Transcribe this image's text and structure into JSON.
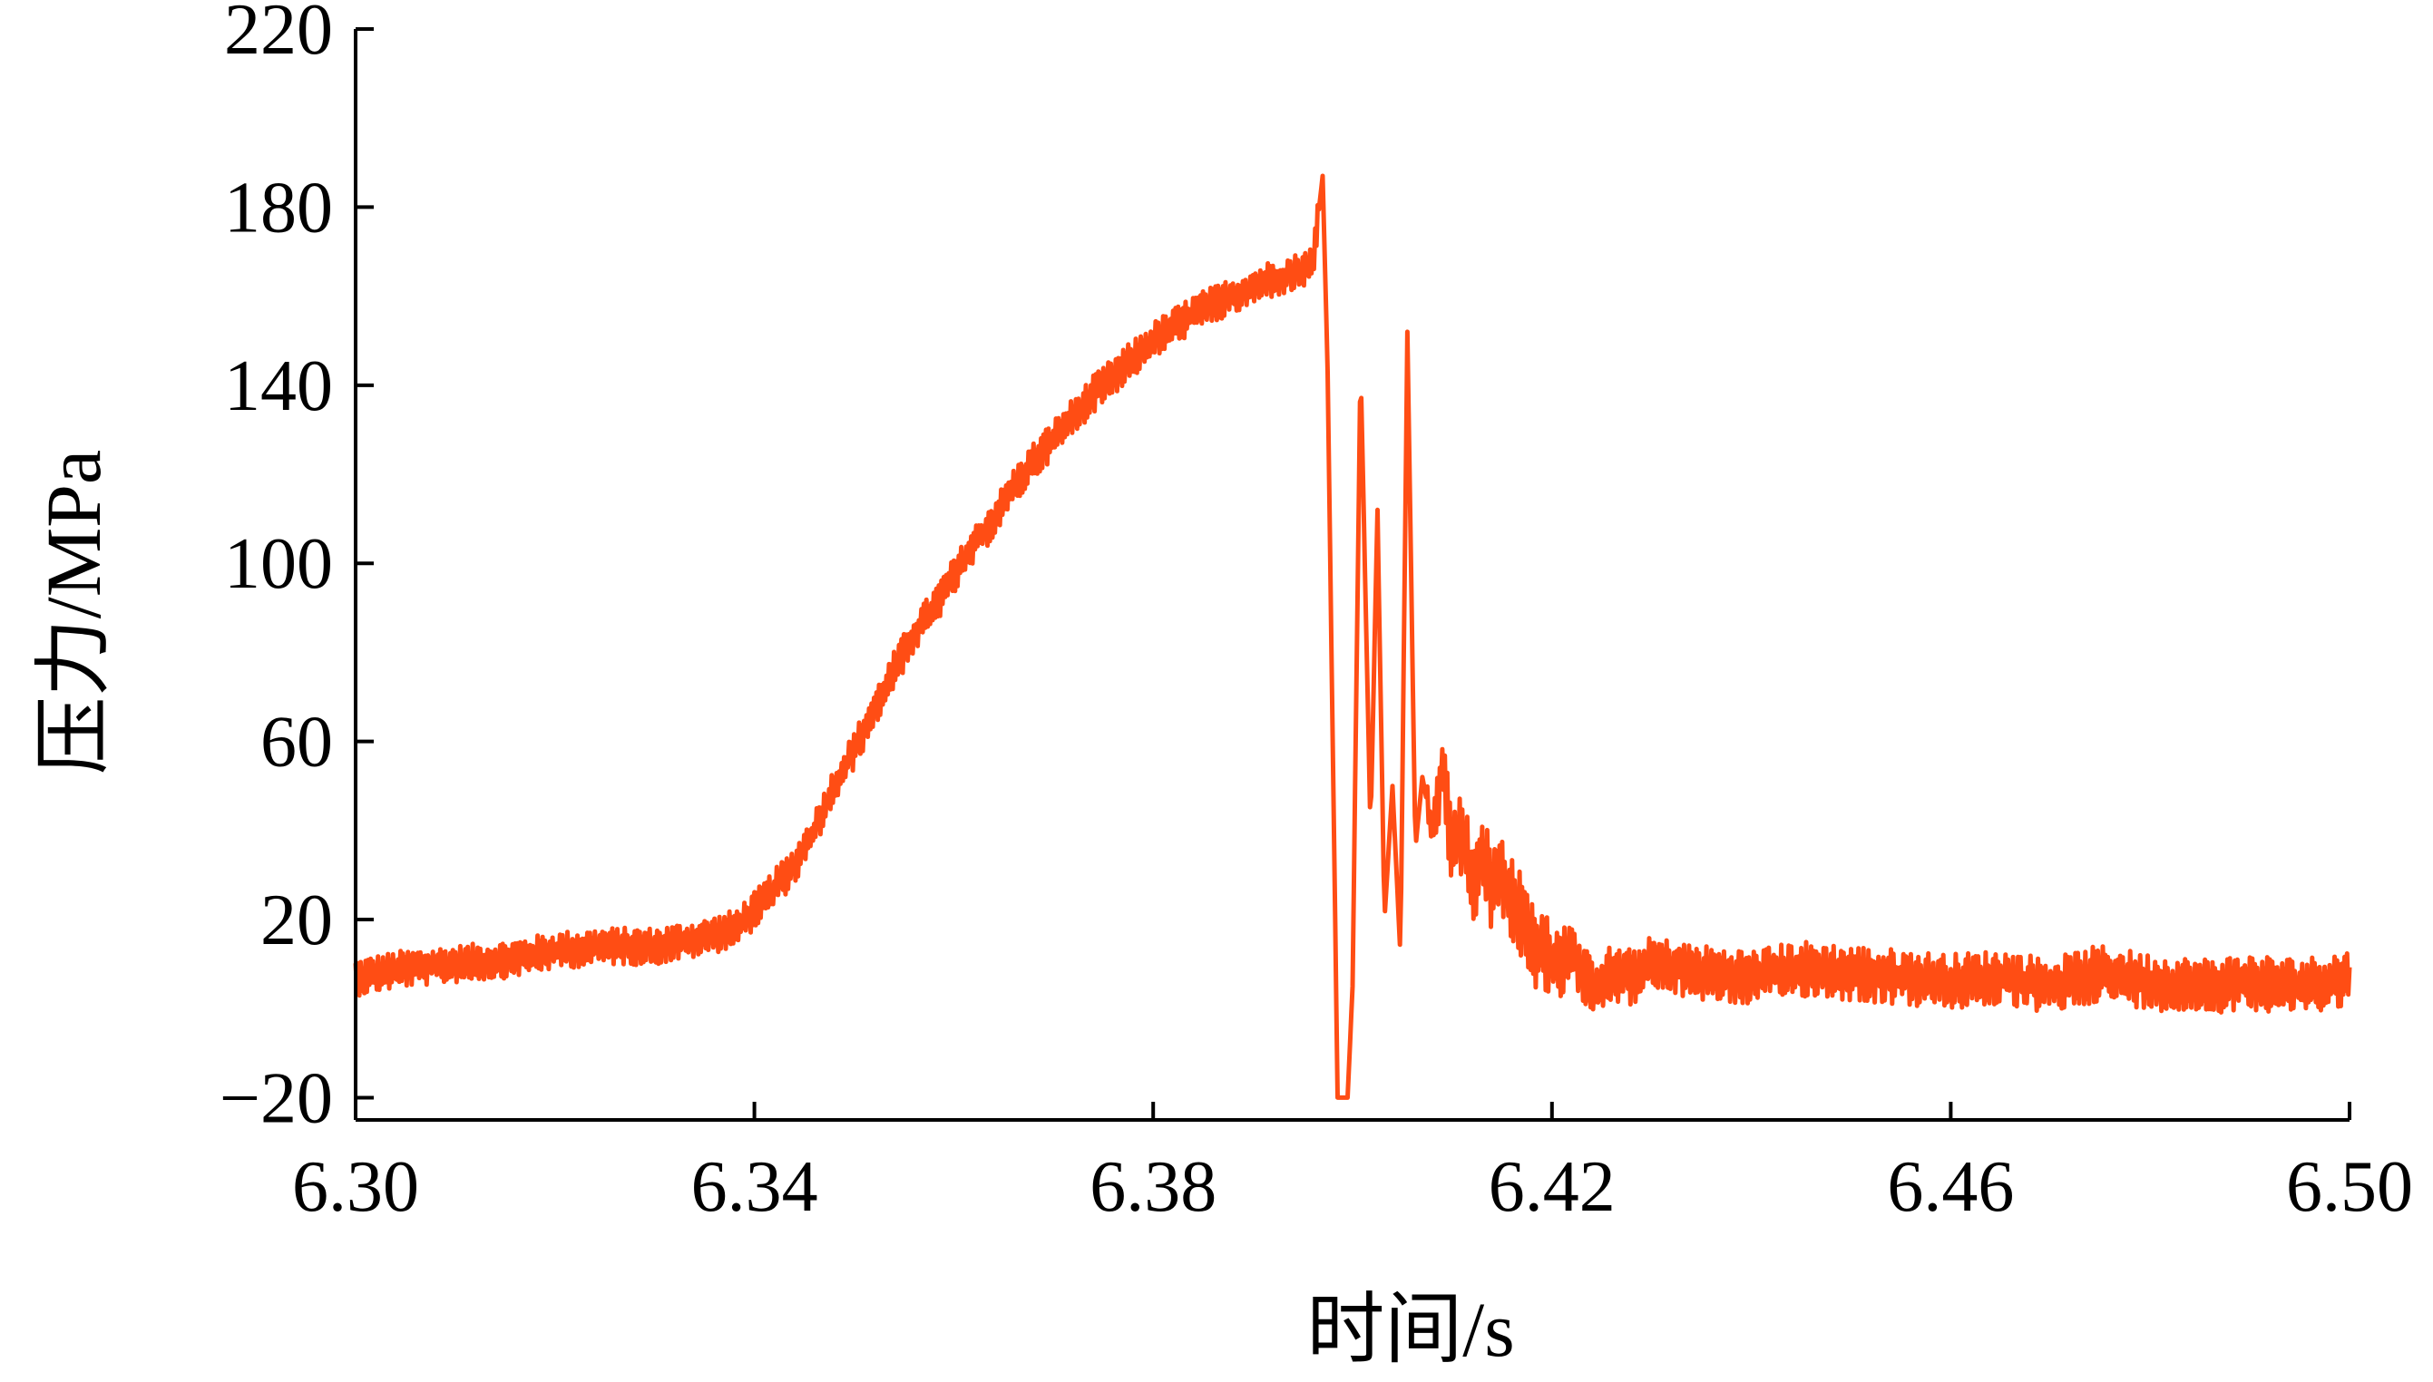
{
  "chart_data": {
    "type": "line",
    "xlabel": "时间/s",
    "ylabel": "压力/MPa",
    "xlim": [
      6.3,
      6.5
    ],
    "ylim": [
      -25,
      220
    ],
    "x_ticks": [
      6.3,
      6.34,
      6.38,
      6.42,
      6.46,
      6.5
    ],
    "x_tick_labels": [
      "6.30",
      "6.34",
      "6.38",
      "6.42",
      "6.46",
      "6.50"
    ],
    "y_ticks": [
      -20,
      20,
      60,
      100,
      140,
      180,
      220
    ],
    "y_tick_labels": [
      "−20",
      "20",
      "60",
      "100",
      "140",
      "180",
      "220"
    ],
    "grid": false,
    "line_color": "#ff4d14",
    "series": [
      {
        "x": [
          6.3,
          6.305,
          6.31,
          6.315,
          6.32,
          6.325,
          6.33,
          6.335,
          6.338,
          6.34,
          6.342,
          6.344,
          6.346,
          6.348,
          6.35,
          6.352,
          6.354,
          6.356,
          6.358,
          6.36,
          6.362,
          6.364,
          6.366,
          6.368,
          6.37,
          6.372,
          6.374,
          6.376,
          6.378,
          6.38,
          6.382,
          6.384,
          6.386,
          6.388,
          6.39,
          6.392,
          6.394,
          6.396,
          6.397,
          6.3975,
          6.3985,
          6.3995,
          6.4,
          6.4008,
          6.4018,
          6.4025,
          6.4032,
          6.404,
          6.4048,
          6.4055,
          6.4063,
          6.407,
          6.408,
          6.409,
          6.41,
          6.411,
          6.412,
          6.413,
          6.414,
          6.415,
          6.416,
          6.418,
          6.42,
          6.422,
          6.424,
          6.426,
          6.428,
          6.43,
          6.435,
          6.44,
          6.445,
          6.45,
          6.455,
          6.46,
          6.465,
          6.47,
          6.475,
          6.48,
          6.485,
          6.49,
          6.495,
          6.5
        ],
        "y": [
          7,
          9,
          10,
          11,
          13,
          14,
          14,
          16,
          18,
          22,
          27,
          32,
          40,
          50,
          58,
          67,
          76,
          84,
          90,
          97,
          104,
          110,
          117,
          123,
          128,
          133,
          138,
          142,
          146,
          150,
          153,
          156,
          158,
          160,
          162,
          164,
          165,
          167,
          187,
          143,
          -20,
          -20,
          5,
          145,
          40,
          112,
          20,
          50,
          12,
          152,
          36,
          52,
          40,
          55,
          35,
          40,
          28,
          35,
          27,
          30,
          25,
          15,
          10,
          12,
          5,
          8,
          7,
          10,
          8,
          7,
          9,
          8,
          7,
          6,
          7,
          5,
          8,
          6,
          5,
          6,
          5,
          7
        ]
      }
    ]
  }
}
